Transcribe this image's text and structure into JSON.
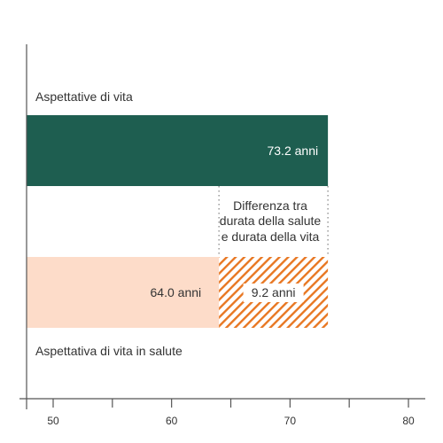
{
  "colors": {
    "life_expectancy": "#1e5e50",
    "healthy_life_expectancy": "#fddcc9",
    "gap_hatch": "#e87722",
    "axis": "#555555",
    "text": "#333333",
    "dotted": "#8a8a8a"
  },
  "chart_data": {
    "type": "bar",
    "orientation": "horizontal",
    "title": "",
    "xlabel": "",
    "ylabel": "",
    "xlim": [
      45.5,
      80
    ],
    "x_ticks": [
      50,
      60,
      70,
      80
    ],
    "grid": false,
    "series": [
      {
        "name": "Aspettative di vita",
        "value": 73.2,
        "value_label": "73.2 anni"
      },
      {
        "name": "Aspettativa di vita in salute",
        "value": 64.0,
        "value_label": "64.0 anni"
      }
    ],
    "gap": {
      "value": 9.2,
      "value_label": "9.2 anni",
      "annotation": [
        "Differenza tra",
        "durata della salute",
        "e durata della vita"
      ]
    }
  }
}
